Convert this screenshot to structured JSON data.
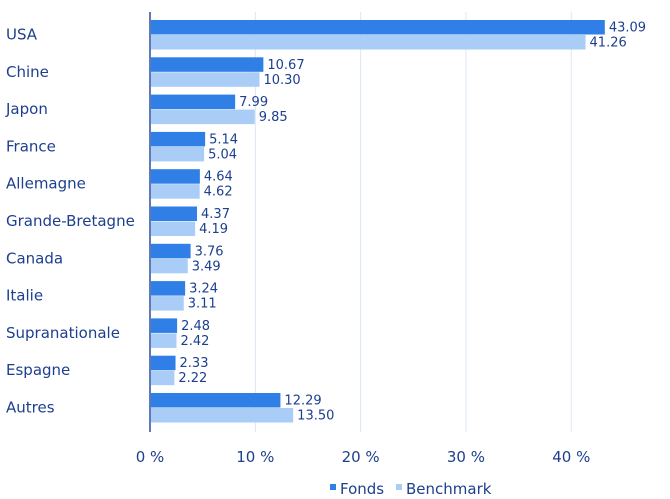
{
  "chart_data": {
    "type": "bar",
    "orientation": "horizontal",
    "categories": [
      "USA",
      "Chine",
      "Japon",
      "France",
      "Allemagne",
      "Grande-Bretagne",
      "Canada",
      "Italie",
      "Supranationale",
      "Espagne",
      "Autres"
    ],
    "series": [
      {
        "name": "Fonds",
        "color": "#2f7fe6",
        "values": [
          43.09,
          10.67,
          7.99,
          5.14,
          4.64,
          4.37,
          3.76,
          3.24,
          2.48,
          2.33,
          12.29
        ],
        "labels": [
          "43.09",
          "10.67",
          "7.99",
          "5.14",
          "4.64",
          "4.37",
          "3.76",
          "3.24",
          "2.48",
          "2.33",
          "12.29"
        ]
      },
      {
        "name": "Benchmark",
        "color": "#a9cdf7",
        "values": [
          41.26,
          10.3,
          9.85,
          5.04,
          4.62,
          4.19,
          3.49,
          3.11,
          2.42,
          2.22,
          13.5
        ],
        "labels": [
          "41.26",
          "10.30",
          "9.85",
          "5.04",
          "4.62",
          "4.19",
          "3.49",
          "3.11",
          "2.42",
          "2.22",
          "13.50"
        ]
      }
    ],
    "xlim": [
      0,
      47
    ],
    "xticks": [
      0,
      10,
      20,
      30,
      40
    ],
    "xtick_labels": [
      "0 %",
      "10 %",
      "20 %",
      "30 %",
      "40 %"
    ],
    "grid": true,
    "legend_position": "bottom-center"
  }
}
